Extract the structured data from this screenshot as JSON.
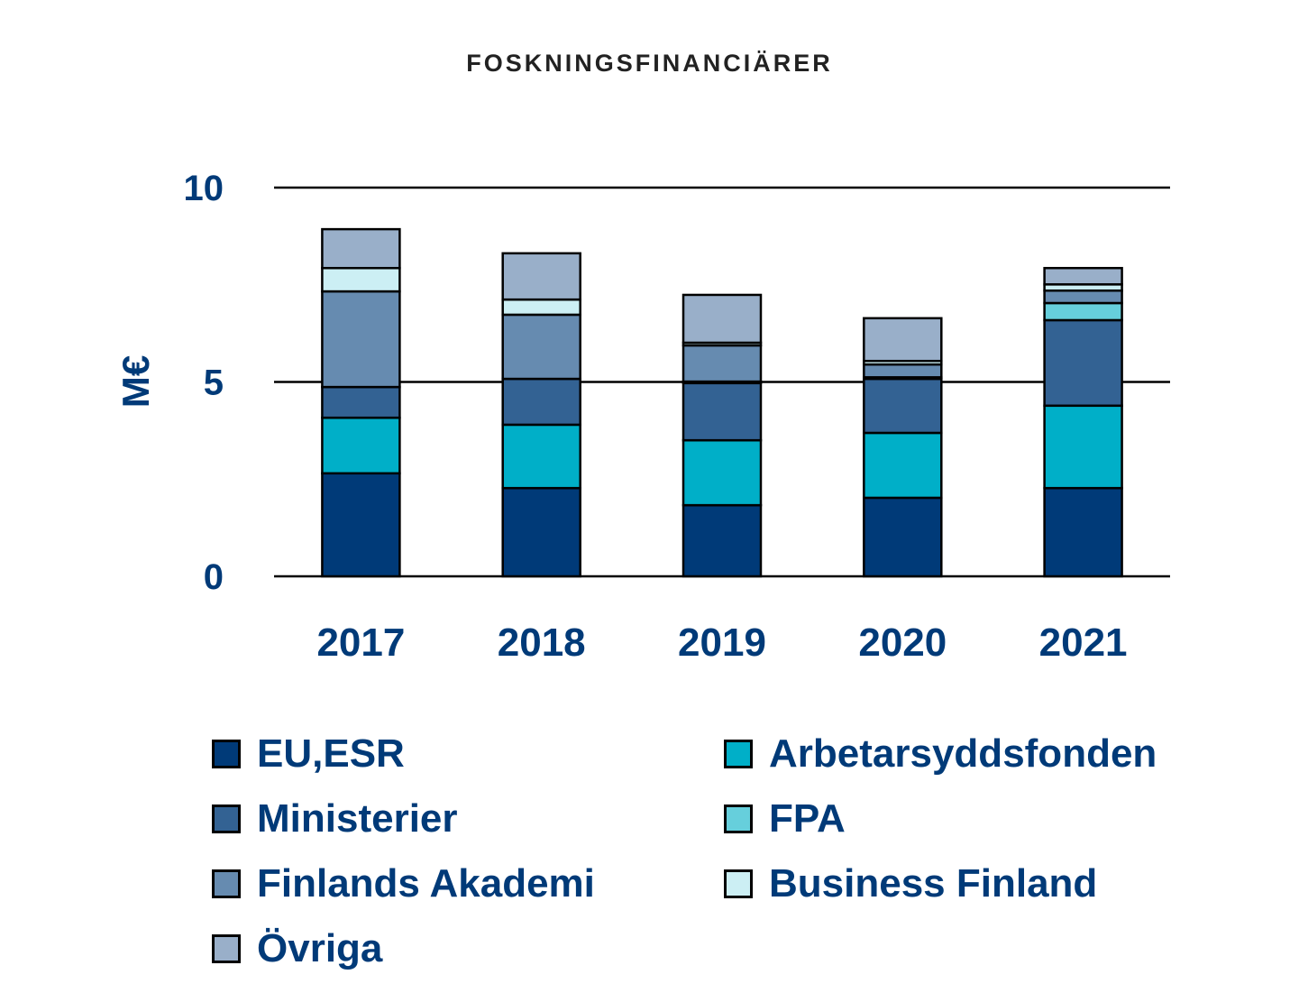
{
  "chart_data": {
    "type": "bar",
    "stacked": true,
    "title": "FOSKNINGSFINANCIÄRER",
    "ylabel": "M€",
    "xlabel": "",
    "ylim": [
      0,
      10
    ],
    "yticks": [
      0,
      5,
      10
    ],
    "grid": true,
    "legend_position": "bottom",
    "categories": [
      "2017",
      "2018",
      "2019",
      "2020",
      "2021"
    ],
    "series": [
      {
        "name": "EU,ESR",
        "color": "#003a78",
        "values": [
          2.65,
          2.27,
          1.83,
          2.02,
          2.27
        ]
      },
      {
        "name": "Arbetarsyddsfonden",
        "color": "#00afc8",
        "values": [
          1.43,
          1.63,
          1.67,
          1.67,
          2.12
        ]
      },
      {
        "name": "Ministerier",
        "color": "#336293",
        "values": [
          0.79,
          1.18,
          1.47,
          1.39,
          2.2
        ]
      },
      {
        "name": "FPA",
        "color": "#66cfdc",
        "values": [
          0,
          0,
          0.04,
          0.04,
          0.44
        ]
      },
      {
        "name": "Finlands Akademi",
        "color": "#668bb0",
        "values": [
          2.46,
          1.65,
          0.93,
          0.33,
          0.32
        ]
      },
      {
        "name": "Business Finland",
        "color": "#cceff4",
        "values": [
          0.6,
          0.39,
          0.07,
          0.09,
          0.16
        ]
      },
      {
        "name": "Övriga",
        "color": "#99afc9",
        "values": [
          1.0,
          1.19,
          1.23,
          1.1,
          0.42
        ]
      }
    ],
    "legend_order": [
      "EU,ESR",
      "Arbetarsyddsfonden",
      "Ministerier",
      "FPA",
      "Finlands Akademi",
      "Business Finland",
      "Övriga"
    ]
  }
}
